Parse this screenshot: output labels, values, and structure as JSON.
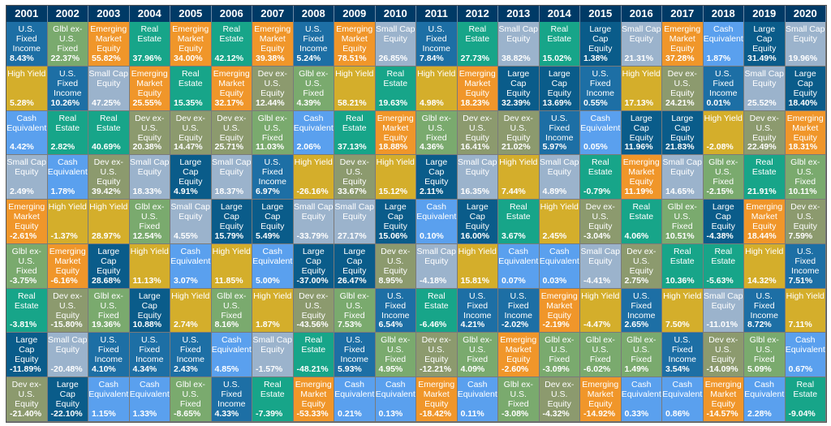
{
  "chart_data": {
    "type": "table",
    "years": [
      "2001",
      "2002",
      "2003",
      "2004",
      "2005",
      "2006",
      "2007",
      "2008",
      "2009",
      "2010",
      "2011",
      "2012",
      "2013",
      "2014",
      "2015",
      "2016",
      "2017",
      "2018",
      "2019",
      "2020"
    ],
    "asset_colors": {
      "U.S. Fixed Income": "#1d6fa5",
      "Glbl ex-U.S. Fixed": "#7aaa6e",
      "Emerging Market Equity": "#f0962a",
      "Real Estate": "#17a589",
      "Small Cap Equity": "#9bb3cc",
      "Large Cap Equity": "#0a5c8a",
      "Cash Equivalent": "#5aa0ee",
      "High Yield": "#d4ae2b",
      "Dev ex-U.S. Equity": "#8c9a6e"
    },
    "columns": [
      [
        [
          "U.S. Fixed Income",
          "8.43%"
        ],
        [
          "High Yield",
          "5.28%"
        ],
        [
          "Cash Equivalent",
          "4.42%"
        ],
        [
          "Small Cap Equity",
          "2.49%"
        ],
        [
          "Emerging Market Equity",
          "-2.61%"
        ],
        [
          "Glbl ex-U.S. Fixed",
          "-3.75%"
        ],
        [
          "Real Estate",
          "-3.81%"
        ],
        [
          "Large Cap Equity",
          "-11.89%"
        ],
        [
          "Dev ex-U.S. Equity",
          "-21.40%"
        ]
      ],
      [
        [
          "Glbl ex-U.S. Fixed",
          "22.37%"
        ],
        [
          "U.S. Fixed Income",
          "10.26%"
        ],
        [
          "Real Estate",
          "2.82%"
        ],
        [
          "Cash Equivalent",
          "1.78%"
        ],
        [
          "High Yield",
          "-1.37%"
        ],
        [
          "Emerging Market Equity",
          "-6.16%"
        ],
        [
          "Dev ex-U.S. Equity",
          "-15.80%"
        ],
        [
          "Small Cap Equity",
          "-20.48%"
        ],
        [
          "Large Cap Equity",
          "-22.10%"
        ]
      ],
      [
        [
          "Emerging Market Equity",
          "55.82%"
        ],
        [
          "Small Cap Equity",
          "47.25%"
        ],
        [
          "Real Estate",
          "40.69%"
        ],
        [
          "Dev ex-U.S. Equity",
          "39.42%"
        ],
        [
          "High Yield",
          "28.97%"
        ],
        [
          "Large Cap Equity",
          "28.68%"
        ],
        [
          "Glbl ex-U.S. Fixed",
          "19.36%"
        ],
        [
          "U.S. Fixed Income",
          "4.10%"
        ],
        [
          "Cash Equivalent",
          "1.15%"
        ]
      ],
      [
        [
          "Real Estate",
          "37.96%"
        ],
        [
          "Emerging Market Equity",
          "25.55%"
        ],
        [
          "Dev ex-U.S. Equity",
          "20.38%"
        ],
        [
          "Small Cap Equity",
          "18.33%"
        ],
        [
          "Glbl ex-U.S. Fixed",
          "12.54%"
        ],
        [
          "High Yield",
          "11.13%"
        ],
        [
          "Large Cap Equity",
          "10.88%"
        ],
        [
          "U.S. Fixed Income",
          "4.34%"
        ],
        [
          "Cash Equivalent",
          "1.33%"
        ]
      ],
      [
        [
          "Emerging Market Equity",
          "34.00%"
        ],
        [
          "Real Estate",
          "15.35%"
        ],
        [
          "Dev ex-U.S. Equity",
          "14.47%"
        ],
        [
          "Large Cap Equity",
          "4.91%"
        ],
        [
          "Small Cap Equity",
          "4.55%"
        ],
        [
          "Cash Equivalent",
          "3.07%"
        ],
        [
          "High Yield",
          "2.74%"
        ],
        [
          "U.S. Fixed Income",
          "2.43%"
        ],
        [
          "Glbl ex-U.S. Fixed",
          "-8.65%"
        ]
      ],
      [
        [
          "Real Estate",
          "42.12%"
        ],
        [
          "Emerging Market Equity",
          "32.17%"
        ],
        [
          "Dev ex-U.S. Equity",
          "25.71%"
        ],
        [
          "Small Cap Equity",
          "18.37%"
        ],
        [
          "Large Cap Equity",
          "15.79%"
        ],
        [
          "High Yield",
          "11.85%"
        ],
        [
          "Glbl ex-U.S. Fixed",
          "8.16%"
        ],
        [
          "Cash Equivalent",
          "4.85%"
        ],
        [
          "U.S. Fixed Income",
          "4.33%"
        ]
      ],
      [
        [
          "Emerging Market Equity",
          "39.38%"
        ],
        [
          "Dev ex-U.S. Equity",
          "12.44%"
        ],
        [
          "Glbl ex-U.S. Fixed",
          "11.03%"
        ],
        [
          "U.S. Fixed Income",
          "6.97%"
        ],
        [
          "Large Cap Equity",
          "5.49%"
        ],
        [
          "Cash Equivalent",
          "5.00%"
        ],
        [
          "High Yield",
          "1.87%"
        ],
        [
          "Small Cap Equity",
          "-1.57%"
        ],
        [
          "Real Estate",
          "-7.39%"
        ]
      ],
      [
        [
          "U.S. Fixed Income",
          "5.24%"
        ],
        [
          "Glbl ex-U.S. Fixed",
          "4.39%"
        ],
        [
          "Cash Equivalent",
          "2.06%"
        ],
        [
          "High Yield",
          "-26.16%"
        ],
        [
          "Small Cap Equity",
          "-33.79%"
        ],
        [
          "Large Cap Equity",
          "-37.00%"
        ],
        [
          "Dev ex-U.S. Equity",
          "-43.56%"
        ],
        [
          "Real Estate",
          "-48.21%"
        ],
        [
          "Emerging Market Equity",
          "-53.33%"
        ]
      ],
      [
        [
          "Emerging Market Equity",
          "78.51%"
        ],
        [
          "High Yield",
          "58.21%"
        ],
        [
          "Real Estate",
          "37.13%"
        ],
        [
          "Dev ex-U.S. Equity",
          "33.67%"
        ],
        [
          "Small Cap Equity",
          "27.17%"
        ],
        [
          "Large Cap Equity",
          "26.47%"
        ],
        [
          "Glbl ex-U.S. Fixed",
          "7.53%"
        ],
        [
          "U.S. Fixed Income",
          "5.93%"
        ],
        [
          "Cash Equivalent",
          "0.21%"
        ]
      ],
      [
        [
          "Small Cap Equity",
          "26.85%"
        ],
        [
          "Real Estate",
          "19.63%"
        ],
        [
          "Emerging Market Equity",
          "18.88%"
        ],
        [
          "High Yield",
          "15.12%"
        ],
        [
          "Large Cap Equity",
          "15.06%"
        ],
        [
          "Dev ex-U.S. Equity",
          "8.95%"
        ],
        [
          "U.S. Fixed Income",
          "6.54%"
        ],
        [
          "Glbl ex-U.S. Fixed",
          "4.95%"
        ],
        [
          "Cash Equivalent",
          "0.13%"
        ]
      ],
      [
        [
          "U.S. Fixed Income",
          "7.84%"
        ],
        [
          "High Yield",
          "4.98%"
        ],
        [
          "Glbl ex-U.S. Fixed",
          "4.36%"
        ],
        [
          "Large Cap Equity",
          "2.11%"
        ],
        [
          "Cash Equivalent",
          "0.10%"
        ],
        [
          "Small Cap Equity",
          "-4.18%"
        ],
        [
          "Real Estate",
          "-6.46%"
        ],
        [
          "Dev ex-U.S. Equity",
          "-12.21%"
        ],
        [
          "Emerging Market Equity",
          "-18.42%"
        ]
      ],
      [
        [
          "Real Estate",
          "27.73%"
        ],
        [
          "Emerging Market Equity",
          "18.23%"
        ],
        [
          "Dev ex-U.S. Equity",
          "16.41%"
        ],
        [
          "Small Cap Equity",
          "16.35%"
        ],
        [
          "Large Cap Equity",
          "16.00%"
        ],
        [
          "High Yield",
          "15.81%"
        ],
        [
          "U.S. Fixed Income",
          "4.21%"
        ],
        [
          "Glbl ex-U.S. Fixed",
          "4.09%"
        ],
        [
          "Cash Equivalent",
          "0.11%"
        ]
      ],
      [
        [
          "Small Cap Equity",
          "38.82%"
        ],
        [
          "Large Cap Equity",
          "32.39%"
        ],
        [
          "Dev ex-U.S. Equity",
          "21.02%"
        ],
        [
          "High Yield",
          "7.44%"
        ],
        [
          "Real Estate",
          "3.67%"
        ],
        [
          "Cash Equivalent",
          "0.07%"
        ],
        [
          "U.S. Fixed Income",
          "-2.02%"
        ],
        [
          "Emerging Market Equity",
          "-2.60%"
        ],
        [
          "Glbl ex-U.S. Fixed",
          "-3.08%"
        ]
      ],
      [
        [
          "Real Estate",
          "15.02%"
        ],
        [
          "Large Cap Equity",
          "13.69%"
        ],
        [
          "U.S. Fixed Income",
          "5.97%"
        ],
        [
          "Small Cap Equity",
          "4.89%"
        ],
        [
          "High Yield",
          "2.45%"
        ],
        [
          "Cash Equivalent",
          "0.03%"
        ],
        [
          "Emerging Market Equity",
          "-2.19%"
        ],
        [
          "Glbl ex-U.S. Fixed",
          "-3.09%"
        ],
        [
          "Dev ex-U.S. Equity",
          "-4.32%"
        ]
      ],
      [
        [
          "Large Cap Equity",
          "1.38%"
        ],
        [
          "U.S. Fixed Income",
          "0.55%"
        ],
        [
          "Cash Equivalent",
          "0.05%"
        ],
        [
          "Real Estate",
          "-0.79%"
        ],
        [
          "Dev ex-U.S. Equity",
          "-3.04%"
        ],
        [
          "Small Cap Equity",
          "-4.41%"
        ],
        [
          "High Yield",
          "-4.47%"
        ],
        [
          "Glbl ex-U.S. Fixed",
          "-6.02%"
        ],
        [
          "Emerging Market Equity",
          "-14.92%"
        ]
      ],
      [
        [
          "Small Cap Equity",
          "21.31%"
        ],
        [
          "High Yield",
          "17.13%"
        ],
        [
          "Large Cap Equity",
          "11.96%"
        ],
        [
          "Emerging Market Equity",
          "11.19%"
        ],
        [
          "Real Estate",
          "4.06%"
        ],
        [
          "Dev ex-U.S. Equity",
          "2.75%"
        ],
        [
          "U.S. Fixed Income",
          "2.65%"
        ],
        [
          "Glbl ex-U.S. Fixed",
          "1.49%"
        ],
        [
          "Cash Equivalent",
          "0.33%"
        ]
      ],
      [
        [
          "Emerging Market Equity",
          "37.28%"
        ],
        [
          "Dev ex-U.S. Equity",
          "24.21%"
        ],
        [
          "Large Cap Equity",
          "21.83%"
        ],
        [
          "Small Cap Equity",
          "14.65%"
        ],
        [
          "Glbl ex-U.S. Fixed",
          "10.51%"
        ],
        [
          "Real Estate",
          "10.36%"
        ],
        [
          "High Yield",
          "7.50%"
        ],
        [
          "U.S. Fixed Income",
          "3.54%"
        ],
        [
          "Cash Equivalent",
          "0.86%"
        ]
      ],
      [
        [
          "Cash Equivalent",
          "1.87%"
        ],
        [
          "U.S. Fixed Income",
          "0.01%"
        ],
        [
          "High Yield",
          "-2.08%"
        ],
        [
          "Glbl ex-U.S. Fixed",
          "-2.15%"
        ],
        [
          "Large Cap Equity",
          "-4.38%"
        ],
        [
          "Real Estate",
          "-5.63%"
        ],
        [
          "Small Cap Equity",
          "-11.01%"
        ],
        [
          "Dev ex-U.S. Equity",
          "-14.09%"
        ],
        [
          "Emerging Market Equity",
          "-14.57%"
        ]
      ],
      [
        [
          "Large Cap Equity",
          "31.49%"
        ],
        [
          "Small Cap Equity",
          "25.52%"
        ],
        [
          "Dev ex-U.S. Equity",
          "22.49%"
        ],
        [
          "Real Estate",
          "21.91%"
        ],
        [
          "Emerging Market Equity",
          "18.44%"
        ],
        [
          "High Yield",
          "14.32%"
        ],
        [
          "U.S. Fixed Income",
          "8.72%"
        ],
        [
          "Glbl ex-U.S. Fixed",
          "5.09%"
        ],
        [
          "Cash Equivalent",
          "2.28%"
        ]
      ],
      [
        [
          "Small Cap Equity",
          "19.96%"
        ],
        [
          "Large Cap Equity",
          "18.40%"
        ],
        [
          "Emerging Market Equity",
          "18.31%"
        ],
        [
          "Glbl ex-U.S. Fixed",
          "10.11%"
        ],
        [
          "Dev ex-U.S. Equity",
          "7.59%"
        ],
        [
          "U.S. Fixed Income",
          "7.51%"
        ],
        [
          "High Yield",
          "7.11%"
        ],
        [
          "Cash Equivalent",
          "0.67%"
        ],
        [
          "Real Estate",
          "-9.04%"
        ]
      ]
    ]
  }
}
